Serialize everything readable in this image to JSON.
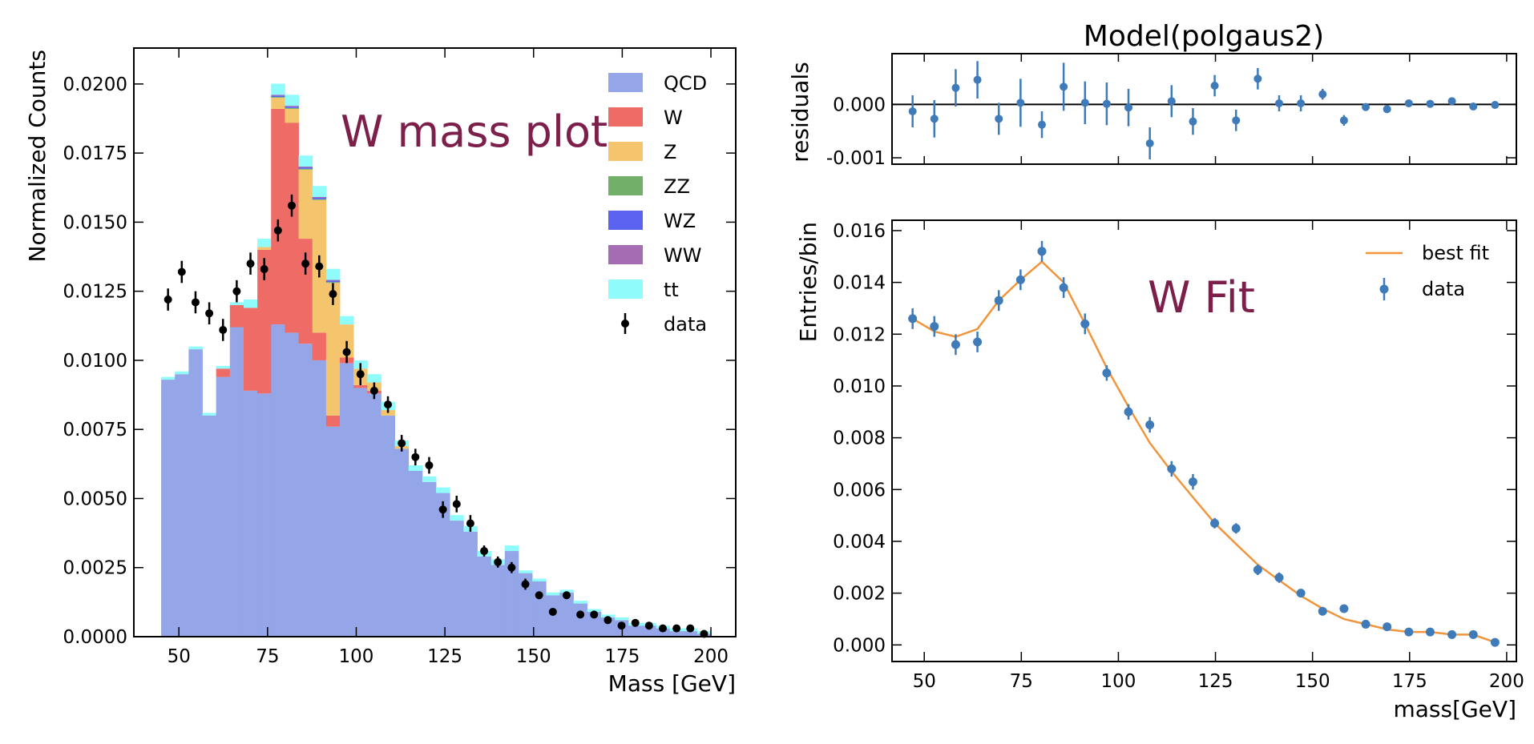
{
  "chart_data": [
    {
      "type": "histogram",
      "xlabel": "Mass [GeV]",
      "ylabel": "Normalized Counts",
      "annotation": "W mass plot",
      "legend": "upper right",
      "bins": [
        45,
        48.875,
        52.75,
        56.625,
        60.5,
        64.375,
        68.25,
        72.125,
        76,
        79.875,
        83.75,
        87.625,
        91.5,
        95.375,
        99.25,
        103.125,
        107,
        110.875,
        114.75,
        118.625,
        122.5,
        126.375,
        130.25,
        134.125,
        138,
        141.875,
        145.75,
        149.625,
        153.5,
        157.375,
        161.25,
        165.125,
        169,
        172.875,
        176.75,
        180.625,
        184.5,
        188.375,
        192.25,
        196.125,
        200
      ],
      "series": [
        {
          "name": "QCD",
          "color": "#94a5e8",
          "values": [
            0.0093,
            0.0095,
            0.0104,
            0.008,
            0.0094,
            0.0112,
            0.0089,
            0.0088,
            0.0113,
            0.011,
            0.0106,
            0.01,
            0.0076,
            0.0099,
            0.009,
            0.0088,
            0.008,
            0.0068,
            0.006,
            0.0056,
            0.0052,
            0.0042,
            0.0038,
            0.0029,
            0.0026,
            0.0031,
            0.0023,
            0.002,
            0.0015,
            0.0016,
            0.0012,
            0.0009,
            0.0007,
            0.0006,
            0.0004,
            0.0004,
            0.0003,
            0.0002,
            0.0002,
            0.0001
          ]
        },
        {
          "name": "W",
          "color": "#ee6b66",
          "values": [
            0,
            0,
            0,
            0,
            0.0003,
            0.0008,
            0.003,
            0.0052,
            0.0078,
            0.0076,
            0.0038,
            0.001,
            0.0004,
            0.0002,
            0.0001,
            0.0001,
            0,
            0,
            0,
            0,
            0,
            0,
            0,
            0,
            0,
            0,
            0,
            0,
            0,
            0,
            0,
            0,
            0,
            0,
            0,
            0,
            0,
            0,
            0,
            0
          ]
        },
        {
          "name": "Z",
          "color": "#f5c56e",
          "values": [
            0,
            0,
            0,
            0,
            0,
            0,
            0,
            0.0001,
            0.0004,
            0.0005,
            0.0025,
            0.0048,
            0.0048,
            0.0012,
            0.0006,
            0.0003,
            0.0002,
            0.0001,
            0,
            0,
            0,
            0,
            0,
            0,
            0,
            0,
            0,
            0,
            0,
            0,
            0,
            0,
            0,
            0,
            0,
            0,
            0,
            0,
            0,
            0
          ]
        },
        {
          "name": "ZZ",
          "color": "#72b06a",
          "values": [
            0,
            0,
            0,
            0,
            0,
            0,
            0,
            0,
            3e-05,
            3e-05,
            3e-05,
            3e-05,
            3e-05,
            0,
            0,
            0,
            0,
            0,
            0,
            0,
            0,
            0,
            0,
            0,
            0,
            0,
            0,
            0,
            0,
            0,
            0,
            0,
            0,
            0,
            0,
            0,
            0,
            0,
            0,
            0
          ]
        },
        {
          "name": "WZ",
          "color": "#5b63f0",
          "values": [
            0,
            0,
            0,
            0,
            0,
            0,
            0,
            0,
            5e-05,
            5e-05,
            5e-05,
            5e-05,
            5e-05,
            0,
            0,
            0,
            0,
            0,
            0,
            0,
            0,
            0,
            0,
            0,
            0,
            0,
            0,
            0,
            0,
            0,
            0,
            0,
            0,
            0,
            0,
            0,
            0,
            0,
            0,
            0
          ]
        },
        {
          "name": "WW",
          "color": "#a46cb3",
          "values": [
            0,
            0,
            0,
            0,
            0,
            0,
            0,
            0,
            3e-05,
            3e-05,
            3e-05,
            3e-05,
            3e-05,
            0,
            0,
            0,
            0,
            0,
            0,
            0,
            0,
            0,
            0,
            0,
            0,
            0,
            0,
            0,
            0,
            0,
            0,
            0,
            0,
            0,
            0,
            0,
            0,
            0,
            0,
            0
          ]
        },
        {
          "name": "tt",
          "color": "#8ffbfb",
          "values": [
            0.0001,
            0.0001,
            0.0001,
            0.0001,
            0.0001,
            0.0001,
            0.0003,
            0.0003,
            0.0004,
            0.0004,
            0.0004,
            0.0004,
            0.0004,
            0.0003,
            0.0003,
            0.0003,
            0.0003,
            0.0002,
            0.0002,
            0.0002,
            0.0002,
            0.0002,
            0.0002,
            0.0002,
            0.0002,
            0.0002,
            0.0001,
            0.0001,
            0.0001,
            0.0001,
            0.0001,
            0.0001,
            0.0001,
            0.0001,
            0.0001,
            0.0001,
            0.0001,
            0.0001,
            0.0001,
            0.0001
          ]
        }
      ],
      "data": {
        "name": "data",
        "color": "#000000",
        "values": [
          0.0122,
          0.0132,
          0.0121,
          0.0117,
          0.0111,
          0.0125,
          0.0135,
          0.0133,
          0.0147,
          0.0156,
          0.0135,
          0.0134,
          0.0124,
          0.0103,
          0.0095,
          0.0089,
          0.0084,
          0.007,
          0.0065,
          0.0062,
          0.0046,
          0.0048,
          0.0041,
          0.0031,
          0.0027,
          0.0025,
          0.0019,
          0.0015,
          0.0009,
          0.0015,
          0.0008,
          0.0008,
          0.0006,
          0.0004,
          0.0005,
          0.0004,
          0.0003,
          0.0003,
          0.0003,
          0.0001
        ],
        "errors": [
          0.0004,
          0.0004,
          0.0004,
          0.0004,
          0.0004,
          0.0004,
          0.0004,
          0.0004,
          0.0004,
          0.0004,
          0.0004,
          0.0004,
          0.0004,
          0.0004,
          0.0004,
          0.0003,
          0.0003,
          0.0003,
          0.0003,
          0.0003,
          0.0003,
          0.0003,
          0.0003,
          0.0002,
          0.0002,
          0.0002,
          0.0002,
          0.0001,
          0.0001,
          0.0001,
          0.0001,
          0.0001,
          0.0001,
          0.0001,
          0.0001,
          0.0001,
          0.0001,
          0.0001,
          0.0001,
          0.0001
        ]
      },
      "xlim": [
        37.3,
        207
      ],
      "ylim": [
        0,
        0.0213
      ],
      "xticks": [
        50,
        75,
        100,
        125,
        150,
        175,
        200
      ],
      "yticks": [
        {
          "value": 0,
          "label": "0.0000"
        },
        {
          "value": 0.0025,
          "label": "0.0025"
        },
        {
          "value": 0.005,
          "label": "0.0050"
        },
        {
          "value": 0.0075,
          "label": "0.0075"
        },
        {
          "value": 0.01,
          "label": "0.0100"
        },
        {
          "value": 0.0125,
          "label": "0.0125"
        },
        {
          "value": 0.015,
          "label": "0.0150"
        },
        {
          "value": 0.0175,
          "label": "0.0175"
        },
        {
          "value": 0.02,
          "label": "0.0200"
        }
      ]
    },
    {
      "type": "scatter",
      "title": "Model(polgaus2)",
      "ylabel": "residuals",
      "color": "#3f7bb8",
      "x": [
        47,
        52.6,
        58.1,
        63.7,
        69.2,
        74.8,
        80.3,
        85.9,
        91.4,
        97,
        102.6,
        108.1,
        113.7,
        119.2,
        124.8,
        130.3,
        135.9,
        141.4,
        147,
        152.6,
        158.1,
        163.7,
        169.2,
        174.8,
        180.3,
        185.9,
        191.4,
        197
      ],
      "values": [
        -0.00013,
        -0.00027,
        0.00031,
        0.00046,
        -0.00027,
        3e-05,
        -0.00038,
        0.00033,
        3e-05,
        1e-05,
        -6e-05,
        -0.00073,
        6e-05,
        -0.00032,
        0.00035,
        -0.0003,
        0.00048,
        2e-05,
        2e-05,
        0.00019,
        -0.0003,
        -5e-05,
        -9e-05,
        2e-05,
        1e-05,
        6e-05,
        -4e-05,
        -1e-05
      ],
      "errors": [
        0.0003,
        0.00035,
        0.00035,
        0.00035,
        0.0003,
        0.00045,
        0.00025,
        0.00045,
        0.0004,
        0.0004,
        0.00035,
        0.0003,
        0.0003,
        0.00025,
        0.0002,
        0.0002,
        0.0002,
        0.00015,
        0.00015,
        0.0001,
        0.0001,
        7e-05,
        7e-05,
        5e-05,
        5e-05,
        5e-05,
        4e-05,
        4e-05
      ],
      "xlim": [
        41.7,
        202.5
      ],
      "ylim": [
        -0.00112,
        0.00095
      ],
      "yticks": [
        {
          "value": 0,
          "label": "0.000"
        },
        {
          "value": -0.001,
          "label": "-0.001"
        }
      ]
    },
    {
      "type": "line",
      "xlabel": "mass[GeV]",
      "ylabel": "Entries/bin",
      "annotation": "W Fit",
      "legend": "upper right",
      "x": [
        47,
        52.6,
        58.1,
        63.7,
        69.2,
        74.8,
        80.3,
        85.9,
        91.4,
        97,
        102.6,
        108.1,
        113.7,
        119.2,
        124.8,
        130.3,
        135.9,
        141.4,
        147,
        152.6,
        158.1,
        163.7,
        169.2,
        174.8,
        180.3,
        185.9,
        191.4,
        197
      ],
      "series": [
        {
          "name": "best fit",
          "color": "#f0953c",
          "values": [
            0.0126,
            0.0121,
            0.0119,
            0.0122,
            0.0133,
            0.0141,
            0.0148,
            0.014,
            0.0124,
            0.0107,
            0.0092,
            0.0078,
            0.0067,
            0.0057,
            0.0047,
            0.0039,
            0.0031,
            0.0025,
            0.0019,
            0.0014,
            0.001,
            0.0008,
            0.0006,
            0.0005,
            0.0005,
            0.0004,
            0.0004,
            0.0001
          ]
        },
        {
          "name": "data",
          "color": "#3f7bb8",
          "values": [
            0.0126,
            0.0123,
            0.0116,
            0.0117,
            0.0133,
            0.0141,
            0.0152,
            0.0138,
            0.0124,
            0.0105,
            0.009,
            0.0085,
            0.0068,
            0.0063,
            0.0047,
            0.0045,
            0.0029,
            0.0026,
            0.002,
            0.0013,
            0.0014,
            0.0008,
            0.0007,
            0.0005,
            0.0005,
            0.0004,
            0.0004,
            0.0001
          ],
          "errors": [
            0.0004,
            0.0004,
            0.0004,
            0.0004,
            0.0004,
            0.0004,
            0.0004,
            0.0004,
            0.0004,
            0.0003,
            0.0003,
            0.0003,
            0.0003,
            0.0003,
            0.0002,
            0.0002,
            0.0002,
            0.0002,
            0.0001,
            0.0001,
            0.0001,
            0.0001,
            0.0001,
            0.0001,
            0.0001,
            0.0001,
            0.0001,
            0.0001
          ]
        }
      ],
      "xlim": [
        41.7,
        202.5
      ],
      "ylim": [
        -0.00064,
        0.0164
      ],
      "xticks": [
        50,
        75,
        100,
        125,
        150,
        175,
        200
      ],
      "yticks": [
        {
          "value": 0,
          "label": "0.000"
        },
        {
          "value": 0.002,
          "label": "0.002"
        },
        {
          "value": 0.004,
          "label": "0.004"
        },
        {
          "value": 0.006,
          "label": "0.006"
        },
        {
          "value": 0.008,
          "label": "0.008"
        },
        {
          "value": 0.01,
          "label": "0.010"
        },
        {
          "value": 0.012,
          "label": "0.012"
        },
        {
          "value": 0.014,
          "label": "0.014"
        },
        {
          "value": 0.016,
          "label": "0.016"
        }
      ]
    }
  ]
}
